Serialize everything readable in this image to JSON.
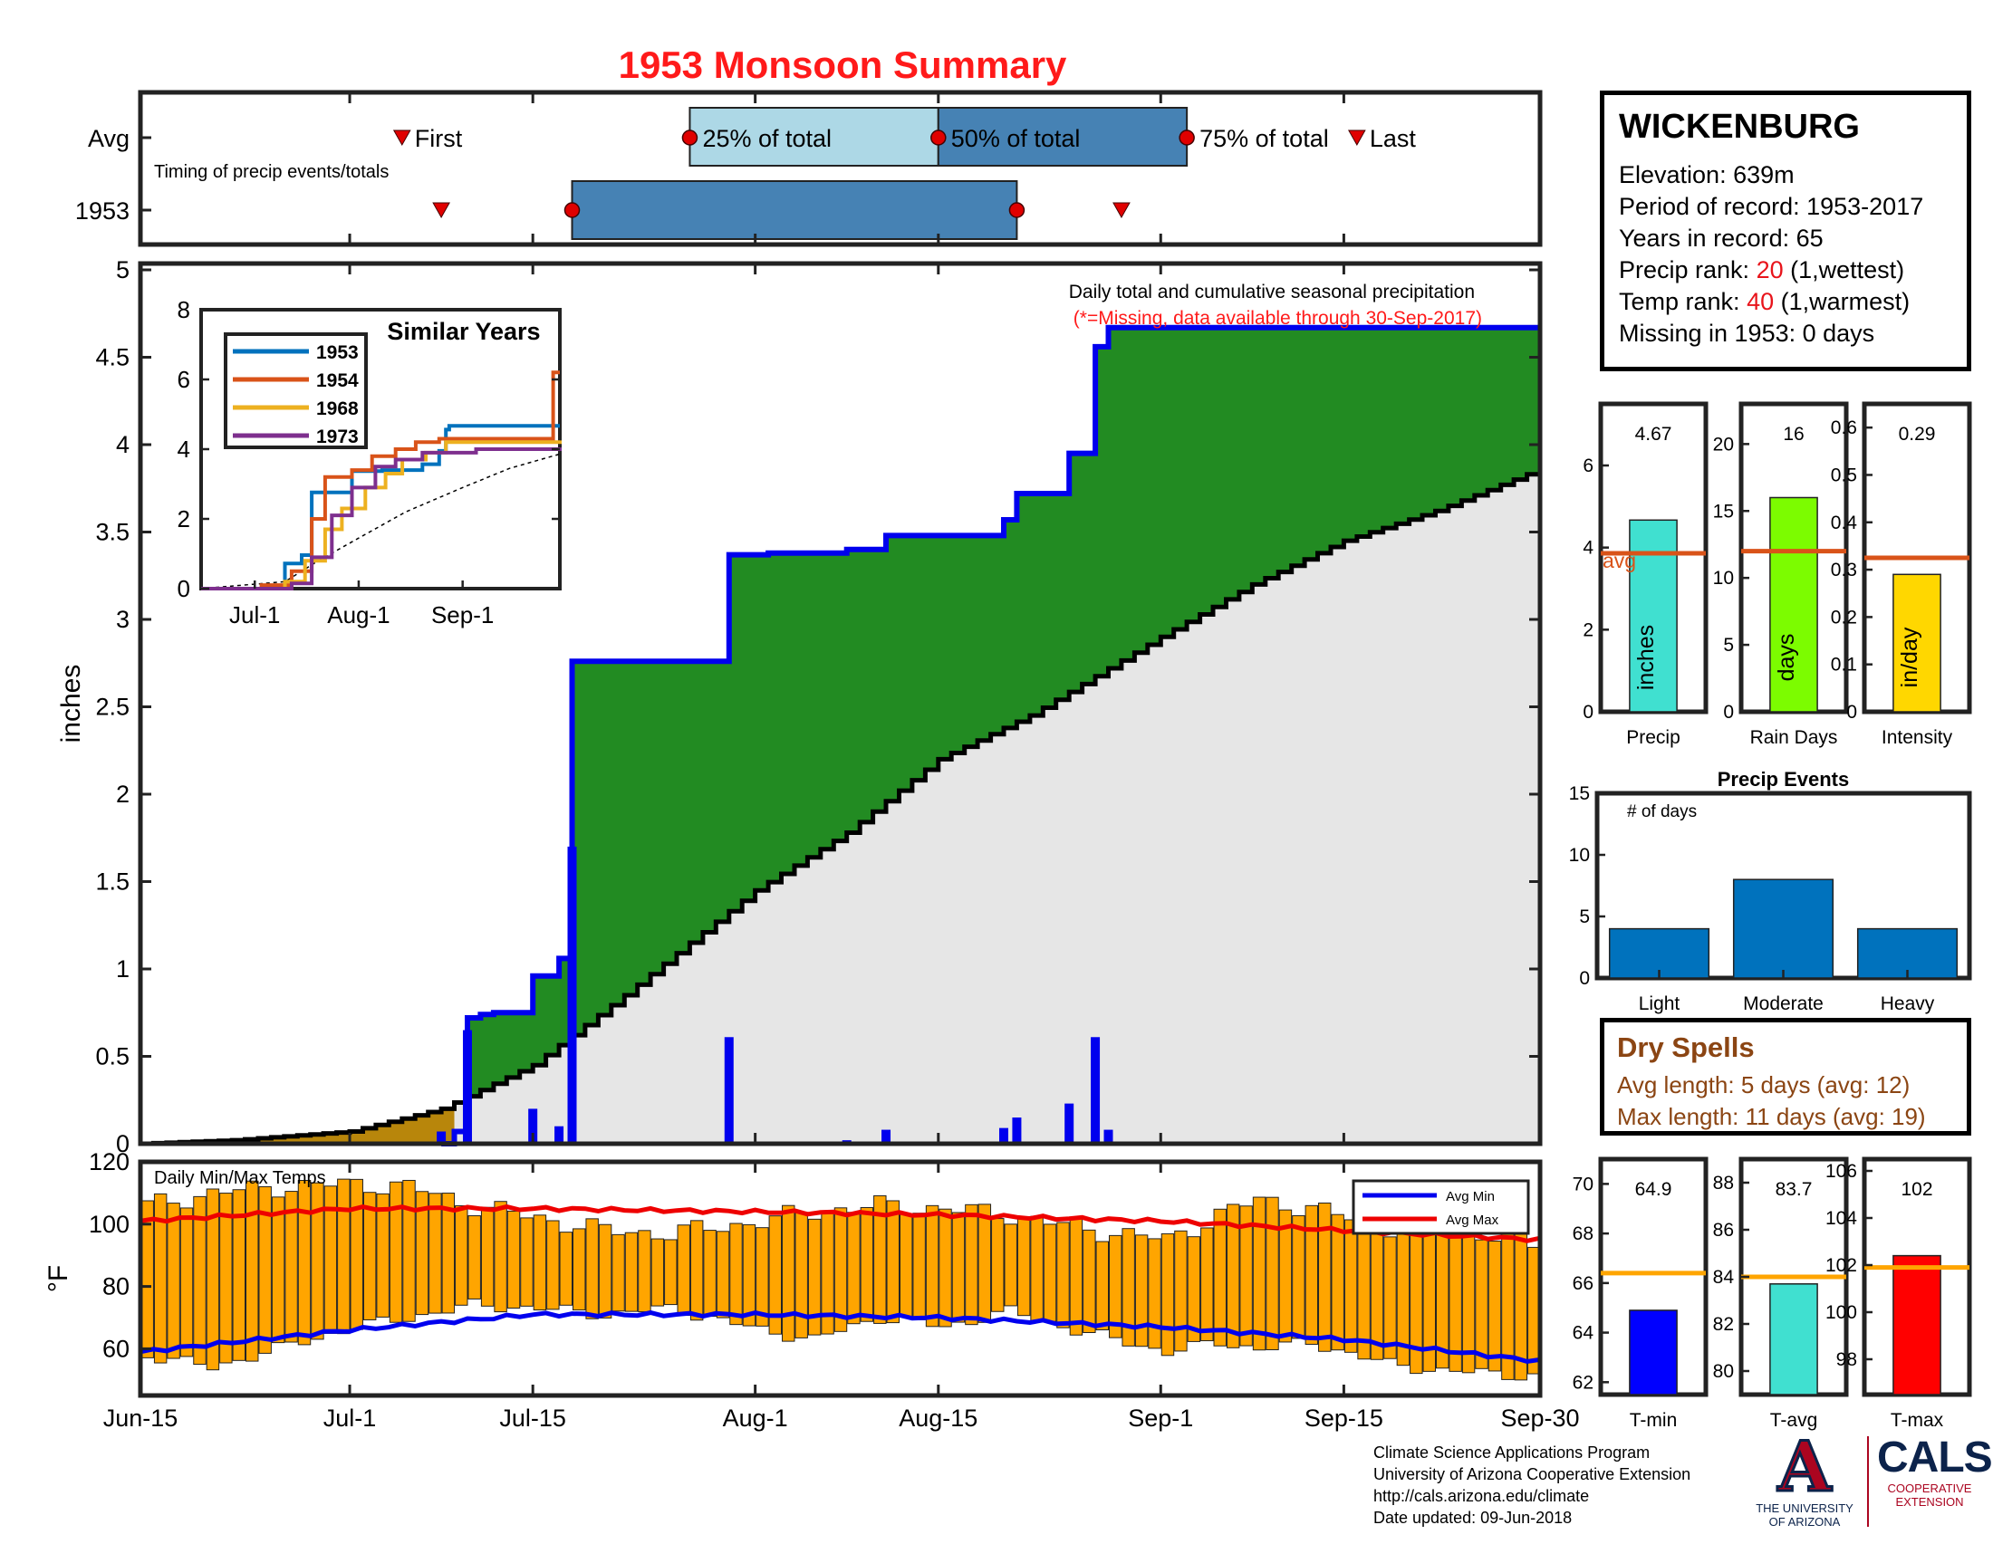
{
  "title": "1953 Monsoon Summary",
  "station": {
    "name": "WICKENBURG",
    "elevation_label": "Elevation: 639m",
    "period_label": "Period of record: 1953-2017",
    "years_label": "Years in record: 65",
    "precip_rank_prefix": "Precip rank: ",
    "precip_rank_value": "20",
    "precip_rank_suffix": " (1,wettest)",
    "temp_rank_prefix": "Temp rank: ",
    "temp_rank_value": "40",
    "temp_rank_suffix": " (1,warmest)",
    "missing_label": "Missing in 1953: 0 days"
  },
  "dry_spells": {
    "title": "Dry Spells",
    "avg_length": "Avg length: 5 days (avg: 12)",
    "max_length": "Max length: 11 days (avg: 19)"
  },
  "credits": {
    "line1": "Climate Science Applications Program",
    "line2": "University of Arizona Cooperative Extension",
    "line3": "http://cals.arizona.edu/climate",
    "line4": "Date updated: 09-Jun-2018"
  },
  "logos": {
    "ua_mark": "A",
    "ua_text1": "THE UNIVERSITY",
    "ua_text2": "OF ARIZONA",
    "cals_mark": "CALS",
    "cals_text1": "COOPERATIVE",
    "cals_text2": "EXTENSION"
  },
  "colors": {
    "title": "#ff1a1a",
    "rank_value": "#e8141b",
    "seasonal_fill": "#228b22",
    "cumulative_line": "#0000ee",
    "avg_fill": "#e6e6e6",
    "premonsoon_fill": "#b8860b",
    "daily_bar": "#0000ee",
    "temp_bar": "#ffa500",
    "avg_min": "#0000ee",
    "avg_max": "#ee0000",
    "avg_line": "#d95319",
    "ref_line": "#ffa500",
    "timing_light": "#add8e6",
    "timing_dark": "#4682b4",
    "events_bar": "#0072bd",
    "dry_spell_text": "#8b4513"
  },
  "chart_data": [
    {
      "id": "timing",
      "type": "bar",
      "ylabels": [
        "Avg",
        "1953"
      ],
      "note": "Timing of precip events/totals",
      "avg": {
        "first": "2017-07-05",
        "p25": "2017-07-27",
        "p50": "2017-08-15",
        "p75": "2017-09-03",
        "last": "2017-09-16",
        "first_label": "First",
        "p25_label": "25% of total",
        "p50_label": "50% of total",
        "p75_label": "75% of total",
        "last_label": "Last"
      },
      "year": {
        "first": "2017-07-08",
        "p25": "2017-07-18",
        "p75": "2017-08-21",
        "last": "2017-08-29"
      }
    },
    {
      "id": "main_precip",
      "type": "area",
      "xlabel": "",
      "ylabel": "inches",
      "ylim": [
        0,
        5
      ],
      "yticks": [
        0,
        0.5,
        1,
        1.5,
        2,
        2.5,
        3,
        3.5,
        4,
        4.5,
        5
      ],
      "ytick_labels": [
        "0",
        "0.5",
        "1",
        "1.5",
        "2",
        "2.5",
        "3",
        "3.5",
        "4",
        "4.5",
        "5"
      ],
      "annotation": "Daily total and cumulative seasonal precipitation",
      "annotation2": "(*=Missing, data available through 30-Sep-2017)",
      "cumulative_steps": [
        [
          "2017-07-09",
          0.07
        ],
        [
          "2017-07-10",
          0.72
        ],
        [
          "2017-07-11",
          0.74
        ],
        [
          "2017-07-12",
          0.75
        ],
        [
          "2017-07-15",
          0.96
        ],
        [
          "2017-07-17",
          1.06
        ],
        [
          "2017-07-18",
          2.76
        ],
        [
          "2017-07-30",
          3.37
        ],
        [
          "2017-08-02",
          3.38
        ],
        [
          "2017-08-08",
          3.4
        ],
        [
          "2017-08-11",
          3.48
        ],
        [
          "2017-08-20",
          3.57
        ],
        [
          "2017-08-21",
          3.72
        ],
        [
          "2017-08-25",
          3.95
        ],
        [
          "2017-08-27",
          4.56
        ],
        [
          "2017-08-28",
          4.67
        ],
        [
          "2017-09-30",
          4.67
        ]
      ],
      "daily_bars": [
        [
          "2017-07-08",
          0.07
        ],
        [
          "2017-07-10",
          0.65
        ],
        [
          "2017-07-15",
          0.2
        ],
        [
          "2017-07-17",
          0.1
        ],
        [
          "2017-07-18",
          1.7
        ],
        [
          "2017-07-30",
          0.61
        ],
        [
          "2017-08-08",
          0.02
        ],
        [
          "2017-08-11",
          0.08
        ],
        [
          "2017-08-20",
          0.09
        ],
        [
          "2017-08-21",
          0.15
        ],
        [
          "2017-08-25",
          0.23
        ],
        [
          "2017-08-27",
          0.61
        ],
        [
          "2017-08-28",
          0.08
        ]
      ],
      "avg_cumulative": [
        [
          "2017-06-15",
          0
        ],
        [
          "2017-06-22",
          0.02
        ],
        [
          "2017-07-01",
          0.07
        ],
        [
          "2017-07-08",
          0.2
        ],
        [
          "2017-07-15",
          0.45
        ],
        [
          "2017-07-22",
          0.85
        ],
        [
          "2017-08-01",
          1.45
        ],
        [
          "2017-08-08",
          1.78
        ],
        [
          "2017-08-15",
          2.2
        ],
        [
          "2017-08-22",
          2.45
        ],
        [
          "2017-09-01",
          2.9
        ],
        [
          "2017-09-08",
          3.2
        ],
        [
          "2017-09-15",
          3.45
        ],
        [
          "2017-09-22",
          3.62
        ],
        [
          "2017-09-30",
          3.86
        ]
      ]
    },
    {
      "id": "similar_years",
      "type": "line",
      "title": "Similar Years",
      "ylim": [
        0,
        8
      ],
      "yticks": [
        0,
        2,
        4,
        6,
        8
      ],
      "xticks": [
        "2017-07-01",
        "2017-08-01",
        "2017-09-01"
      ],
      "xtick_labels": [
        "Jul-1",
        "Aug-1",
        "Sep-1"
      ],
      "series": [
        {
          "name": "1953",
          "color": "#0072bd",
          "points": [
            [
              "2017-06-15",
              0
            ],
            [
              "2017-07-08",
              0.07
            ],
            [
              "2017-07-10",
              0.72
            ],
            [
              "2017-07-15",
              0.96
            ],
            [
              "2017-07-18",
              2.76
            ],
            [
              "2017-07-30",
              3.37
            ],
            [
              "2017-08-08",
              3.4
            ],
            [
              "2017-08-20",
              3.57
            ],
            [
              "2017-08-25",
              3.95
            ],
            [
              "2017-08-27",
              4.56
            ],
            [
              "2017-08-28",
              4.67
            ],
            [
              "2017-09-30",
              4.67
            ]
          ]
        },
        {
          "name": "1954",
          "color": "#d95319",
          "points": [
            [
              "2017-06-15",
              0
            ],
            [
              "2017-07-03",
              0.1
            ],
            [
              "2017-07-12",
              0.5
            ],
            [
              "2017-07-18",
              2.0
            ],
            [
              "2017-07-22",
              3.2
            ],
            [
              "2017-07-30",
              3.4
            ],
            [
              "2017-08-05",
              3.8
            ],
            [
              "2017-08-12",
              4.0
            ],
            [
              "2017-08-18",
              4.2
            ],
            [
              "2017-08-25",
              4.3
            ],
            [
              "2017-09-27",
              4.3
            ],
            [
              "2017-09-28",
              6.2
            ],
            [
              "2017-09-30",
              6.2
            ]
          ]
        },
        {
          "name": "1968",
          "color": "#edb120",
          "points": [
            [
              "2017-06-15",
              0
            ],
            [
              "2017-07-10",
              0.2
            ],
            [
              "2017-07-16",
              0.8
            ],
            [
              "2017-07-22",
              1.7
            ],
            [
              "2017-07-27",
              2.3
            ],
            [
              "2017-08-03",
              2.9
            ],
            [
              "2017-08-09",
              3.3
            ],
            [
              "2017-08-14",
              3.7
            ],
            [
              "2017-08-21",
              3.9
            ],
            [
              "2017-08-27",
              4.2
            ],
            [
              "2017-09-30",
              4.25
            ]
          ]
        },
        {
          "name": "1973",
          "color": "#7e2f8e",
          "points": [
            [
              "2017-06-15",
              0
            ],
            [
              "2017-07-12",
              0.15
            ],
            [
              "2017-07-18",
              0.9
            ],
            [
              "2017-07-24",
              2.1
            ],
            [
              "2017-07-30",
              2.9
            ],
            [
              "2017-08-06",
              3.5
            ],
            [
              "2017-08-12",
              3.7
            ],
            [
              "2017-08-20",
              3.9
            ],
            [
              "2017-09-05",
              4.0
            ],
            [
              "2017-09-30",
              4.05
            ]
          ]
        }
      ],
      "avg_points": [
        [
          "2017-06-15",
          0
        ],
        [
          "2017-07-10",
          0.2
        ],
        [
          "2017-07-20",
          0.8
        ],
        [
          "2017-08-01",
          1.45
        ],
        [
          "2017-08-15",
          2.2
        ],
        [
          "2017-09-01",
          2.9
        ],
        [
          "2017-09-15",
          3.45
        ],
        [
          "2017-09-30",
          3.86
        ]
      ]
    },
    {
      "id": "temps",
      "type": "bar",
      "title": "Daily Min/Max Temps",
      "ylabel": "°F",
      "ylim": [
        45,
        120
      ],
      "yticks": [
        60,
        80,
        100,
        120
      ],
      "ytick_labels": [
        "60",
        "80",
        "100",
        "120"
      ],
      "legend": [
        "Avg Min",
        "Avg Max"
      ],
      "legend_position": "top-right",
      "xticks": [
        "2017-06-15",
        "2017-07-01",
        "2017-07-15",
        "2017-08-01",
        "2017-08-15",
        "2017-09-01",
        "2017-09-15",
        "2017-09-30"
      ],
      "xtick_labels": [
        "Jun-15",
        "Jul-1",
        "Jul-15",
        "Aug-1",
        "Aug-15",
        "Sep-1",
        "Sep-15",
        "Sep-30"
      ],
      "tmax_anchors": [
        [
          "2017-06-15",
          106
        ],
        [
          "2017-06-20",
          110
        ],
        [
          "2017-06-25",
          112
        ],
        [
          "2017-07-01",
          113
        ],
        [
          "2017-07-05",
          112
        ],
        [
          "2017-07-10",
          106
        ],
        [
          "2017-07-15",
          102
        ],
        [
          "2017-07-20",
          98
        ],
        [
          "2017-07-25",
          97
        ],
        [
          "2017-08-01",
          101
        ],
        [
          "2017-08-05",
          104
        ],
        [
          "2017-08-10",
          106
        ],
        [
          "2017-08-15",
          105
        ],
        [
          "2017-08-20",
          103
        ],
        [
          "2017-08-25",
          99
        ],
        [
          "2017-09-01",
          95
        ],
        [
          "2017-09-05",
          103
        ],
        [
          "2017-09-08",
          108
        ],
        [
          "2017-09-12",
          105
        ],
        [
          "2017-09-18",
          99
        ],
        [
          "2017-09-22",
          101
        ],
        [
          "2017-09-26",
          96
        ],
        [
          "2017-09-30",
          93
        ]
      ],
      "tmin_anchors": [
        [
          "2017-06-15",
          58
        ],
        [
          "2017-06-20",
          54
        ],
        [
          "2017-06-25",
          60
        ],
        [
          "2017-07-01",
          67
        ],
        [
          "2017-07-05",
          70
        ],
        [
          "2017-07-10",
          74
        ],
        [
          "2017-07-15",
          73
        ],
        [
          "2017-07-20",
          71
        ],
        [
          "2017-07-25",
          73
        ],
        [
          "2017-08-01",
          66
        ],
        [
          "2017-08-05",
          63
        ],
        [
          "2017-08-10",
          70
        ],
        [
          "2017-08-15",
          67
        ],
        [
          "2017-08-20",
          72
        ],
        [
          "2017-08-25",
          66
        ],
        [
          "2017-09-01",
          59
        ],
        [
          "2017-09-05",
          62
        ],
        [
          "2017-09-08",
          60
        ],
        [
          "2017-09-12",
          62
        ],
        [
          "2017-09-18",
          55
        ],
        [
          "2017-09-22",
          53
        ],
        [
          "2017-09-26",
          52
        ],
        [
          "2017-09-30",
          51
        ]
      ],
      "avg_max": [
        [
          "2017-06-15",
          101
        ],
        [
          "2017-07-01",
          105
        ],
        [
          "2017-07-15",
          105
        ],
        [
          "2017-08-01",
          104
        ],
        [
          "2017-08-15",
          103
        ],
        [
          "2017-09-01",
          101
        ],
        [
          "2017-09-15",
          98
        ],
        [
          "2017-09-30",
          95
        ]
      ],
      "avg_min": [
        [
          "2017-06-15",
          59
        ],
        [
          "2017-07-01",
          66
        ],
        [
          "2017-07-15",
          71
        ],
        [
          "2017-08-01",
          71
        ],
        [
          "2017-08-15",
          70
        ],
        [
          "2017-09-01",
          67
        ],
        [
          "2017-09-15",
          63
        ],
        [
          "2017-09-30",
          56
        ]
      ]
    },
    {
      "id": "precip_stat",
      "type": "bar",
      "value_label": "4.67",
      "value": 4.67,
      "avg": 3.86,
      "avg_label": "avg",
      "unit_label": "inches",
      "xlabel": "Precip",
      "color": "#40e0d0",
      "ylim": [
        0,
        7.5
      ],
      "yticks": [
        0,
        2,
        4,
        6
      ],
      "ytick_labels": [
        "0",
        "2",
        "4",
        "6"
      ]
    },
    {
      "id": "raindays_stat",
      "type": "bar",
      "value_label": "16",
      "value": 16,
      "avg": 12,
      "unit_label": "days",
      "xlabel": "Rain Days",
      "color": "#7cfc00",
      "ylim": [
        0,
        23
      ],
      "yticks": [
        0,
        5,
        10,
        15,
        20
      ],
      "ytick_labels": [
        "0",
        "5",
        "10",
        "15",
        "20"
      ]
    },
    {
      "id": "intensity_stat",
      "type": "bar",
      "value_label": "0.29",
      "value": 0.29,
      "avg": 0.325,
      "unit_label": "in/day",
      "xlabel": "Intensity",
      "color": "#ffd700",
      "ylim": [
        0,
        0.65
      ],
      "yticks": [
        0,
        0.1,
        0.2,
        0.3,
        0.4,
        0.5,
        0.6
      ],
      "ytick_labels": [
        "0",
        "0.1",
        "0.2",
        "0.3",
        "0.4",
        "0.5",
        "0.6"
      ]
    },
    {
      "id": "precip_events",
      "type": "bar",
      "title": "Precip Events",
      "ylabel_inside": "# of days",
      "categories": [
        "Light",
        "Moderate",
        "Heavy"
      ],
      "values": [
        4,
        8,
        4
      ],
      "ylim": [
        0,
        15
      ],
      "yticks": [
        0,
        5,
        10,
        15
      ],
      "ytick_labels": [
        "0",
        "5",
        "10",
        "15"
      ]
    },
    {
      "id": "tmin_stat",
      "type": "bar",
      "value_label": "64.9",
      "value": 64.9,
      "ref": 66.4,
      "xlabel": "T-min",
      "color": "#0000ff",
      "ylim": [
        61.5,
        71
      ],
      "yticks": [
        62,
        64,
        66,
        68,
        70
      ],
      "ytick_labels": [
        "62",
        "64",
        "66",
        "68",
        "70"
      ]
    },
    {
      "id": "tavg_stat",
      "type": "bar",
      "value_label": "83.7",
      "value": 83.7,
      "ref": 84,
      "xlabel": "T-avg",
      "color": "#40e0d0",
      "ylim": [
        79,
        89
      ],
      "yticks": [
        80,
        82,
        84,
        86,
        88
      ],
      "ytick_labels": [
        "80",
        "82",
        "84",
        "86",
        "88"
      ]
    },
    {
      "id": "tmax_stat",
      "type": "bar",
      "value_label": "102",
      "value": 102.4,
      "ref": 101.9,
      "xlabel": "T-max",
      "color": "#ff0000",
      "ylim": [
        96.5,
        106.5
      ],
      "yticks": [
        98,
        100,
        102,
        104,
        106
      ],
      "ytick_labels": [
        "98",
        "100",
        "102",
        "104",
        "106"
      ]
    }
  ]
}
